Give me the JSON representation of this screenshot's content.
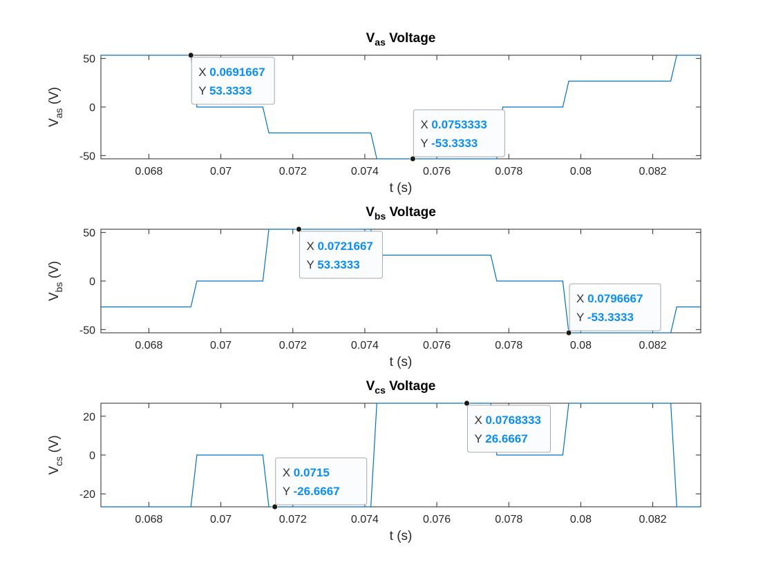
{
  "colors": {
    "line": "#0072bd",
    "axis": "#262626",
    "tip_border": "#a8a8a8",
    "tip_fill": "#fbfcfe",
    "tip_value": "#0b8ef0",
    "marker": "#1b1b14"
  },
  "chart_data": [
    {
      "type": "line",
      "title": "V",
      "title_sub": "as",
      "title_rest": " Voltage",
      "ylabel": "V",
      "ylabel_sub": "as",
      "ylabel_rest": " (V)",
      "xlabel": "t (s)",
      "xlim": [
        0.0666667,
        0.0833333
      ],
      "ylim": [
        -53.3333,
        53.3333
      ],
      "xticks": [
        0.068,
        0.07,
        0.072,
        0.074,
        0.076,
        0.078,
        0.08,
        0.082
      ],
      "xtick_labels": [
        "0.068",
        "0.07",
        "0.072",
        "0.074",
        "0.076",
        "0.078",
        "0.08",
        "0.082"
      ],
      "yticks": [
        -50,
        0,
        50
      ],
      "ytick_labels": [
        "-50",
        "0",
        "50"
      ],
      "series": [
        {
          "x": [
            0.0666667,
            0.0691667,
            0.0693333,
            0.0711667,
            0.0713333,
            0.0741667,
            0.0743333,
            0.0761667,
            0.0763333,
            0.0776667,
            0.0778333,
            0.0795,
            0.0796667,
            0.0825,
            0.0826667,
            0.0833333
          ],
          "y": [
            53.3333,
            53.3333,
            0,
            0,
            -26.6667,
            -26.6667,
            -53.3333,
            -53.3333,
            -53.3333,
            -53.3333,
            0,
            0,
            26.6667,
            26.6667,
            53.3333,
            53.3333
          ]
        }
      ],
      "datatips": [
        {
          "x": 0.0691667,
          "y": 53.3333,
          "x_key": "X",
          "x_text": "0.0691667",
          "y_key": "Y",
          "y_text": "53.3333",
          "side": "below"
        },
        {
          "x": 0.0753333,
          "y": -53.3333,
          "x_key": "X",
          "x_text": "0.0753333",
          "y_key": "Y",
          "y_text": "-53.3333",
          "side": "above"
        }
      ]
    },
    {
      "type": "line",
      "title": "V",
      "title_sub": "bs",
      "title_rest": " Voltage",
      "ylabel": "V",
      "ylabel_sub": "bs",
      "ylabel_rest": " (V)",
      "xlabel": "t (s)",
      "xlim": [
        0.0666667,
        0.0833333
      ],
      "ylim": [
        -53.3333,
        53.3333
      ],
      "xticks": [
        0.068,
        0.07,
        0.072,
        0.074,
        0.076,
        0.078,
        0.08,
        0.082
      ],
      "xtick_labels": [
        "0.068",
        "0.07",
        "0.072",
        "0.074",
        "0.076",
        "0.078",
        "0.08",
        "0.082"
      ],
      "yticks": [
        -50,
        0,
        50
      ],
      "ytick_labels": [
        "-50",
        "0",
        "50"
      ],
      "series": [
        {
          "x": [
            0.0666667,
            0.0691667,
            0.0693333,
            0.0711667,
            0.0713333,
            0.0741667,
            0.0743333,
            0.0775,
            0.0776667,
            0.0795,
            0.0796667,
            0.0825,
            0.0826667,
            0.0833333
          ],
          "y": [
            -26.6667,
            -26.6667,
            0,
            0,
            53.3333,
            53.3333,
            26.6667,
            26.6667,
            0,
            0,
            -53.3333,
            -53.3333,
            -26.6667,
            -26.6667
          ]
        }
      ],
      "datatips": [
        {
          "x": 0.0721667,
          "y": 53.3333,
          "x_key": "X",
          "x_text": "0.0721667",
          "y_key": "Y",
          "y_text": "53.3333",
          "side": "below"
        },
        {
          "x": 0.0796667,
          "y": -53.3333,
          "x_key": "X",
          "x_text": "0.0796667",
          "y_key": "Y",
          "y_text": "-53.3333",
          "side": "above"
        }
      ]
    },
    {
      "type": "line",
      "title": "V",
      "title_sub": "cs",
      "title_rest": " Voltage",
      "ylabel": "V",
      "ylabel_sub": "cs",
      "ylabel_rest": " (V)",
      "xlabel": "t (s)",
      "xlim": [
        0.0666667,
        0.0833333
      ],
      "ylim": [
        -26.6667,
        26.6667
      ],
      "xticks": [
        0.068,
        0.07,
        0.072,
        0.074,
        0.076,
        0.078,
        0.08,
        0.082
      ],
      "xtick_labels": [
        "0.068",
        "0.07",
        "0.072",
        "0.074",
        "0.076",
        "0.078",
        "0.08",
        "0.082"
      ],
      "yticks": [
        -20,
        0,
        20
      ],
      "ytick_labels": [
        "-20",
        "0",
        "20"
      ],
      "series": [
        {
          "x": [
            0.0666667,
            0.0691667,
            0.0693333,
            0.0711667,
            0.0713333,
            0.0741667,
            0.0743333,
            0.0775,
            0.0776667,
            0.0795,
            0.0796667,
            0.0825,
            0.0826667,
            0.0833333
          ],
          "y": [
            -26.6667,
            -26.6667,
            0,
            0,
            -26.6667,
            -26.6667,
            26.6667,
            26.6667,
            0,
            0,
            26.6667,
            26.6667,
            -26.6667,
            -26.6667
          ]
        }
      ],
      "datatips": [
        {
          "x": 0.0715,
          "y": -26.6667,
          "x_key": "X",
          "x_text": "0.0715",
          "y_key": "Y",
          "y_text": "-26.6667",
          "side": "above"
        },
        {
          "x": 0.0768333,
          "y": 26.6667,
          "x_key": "X",
          "x_text": "0.0768333",
          "y_key": "Y",
          "y_text": "26.6667",
          "side": "below"
        }
      ]
    }
  ]
}
